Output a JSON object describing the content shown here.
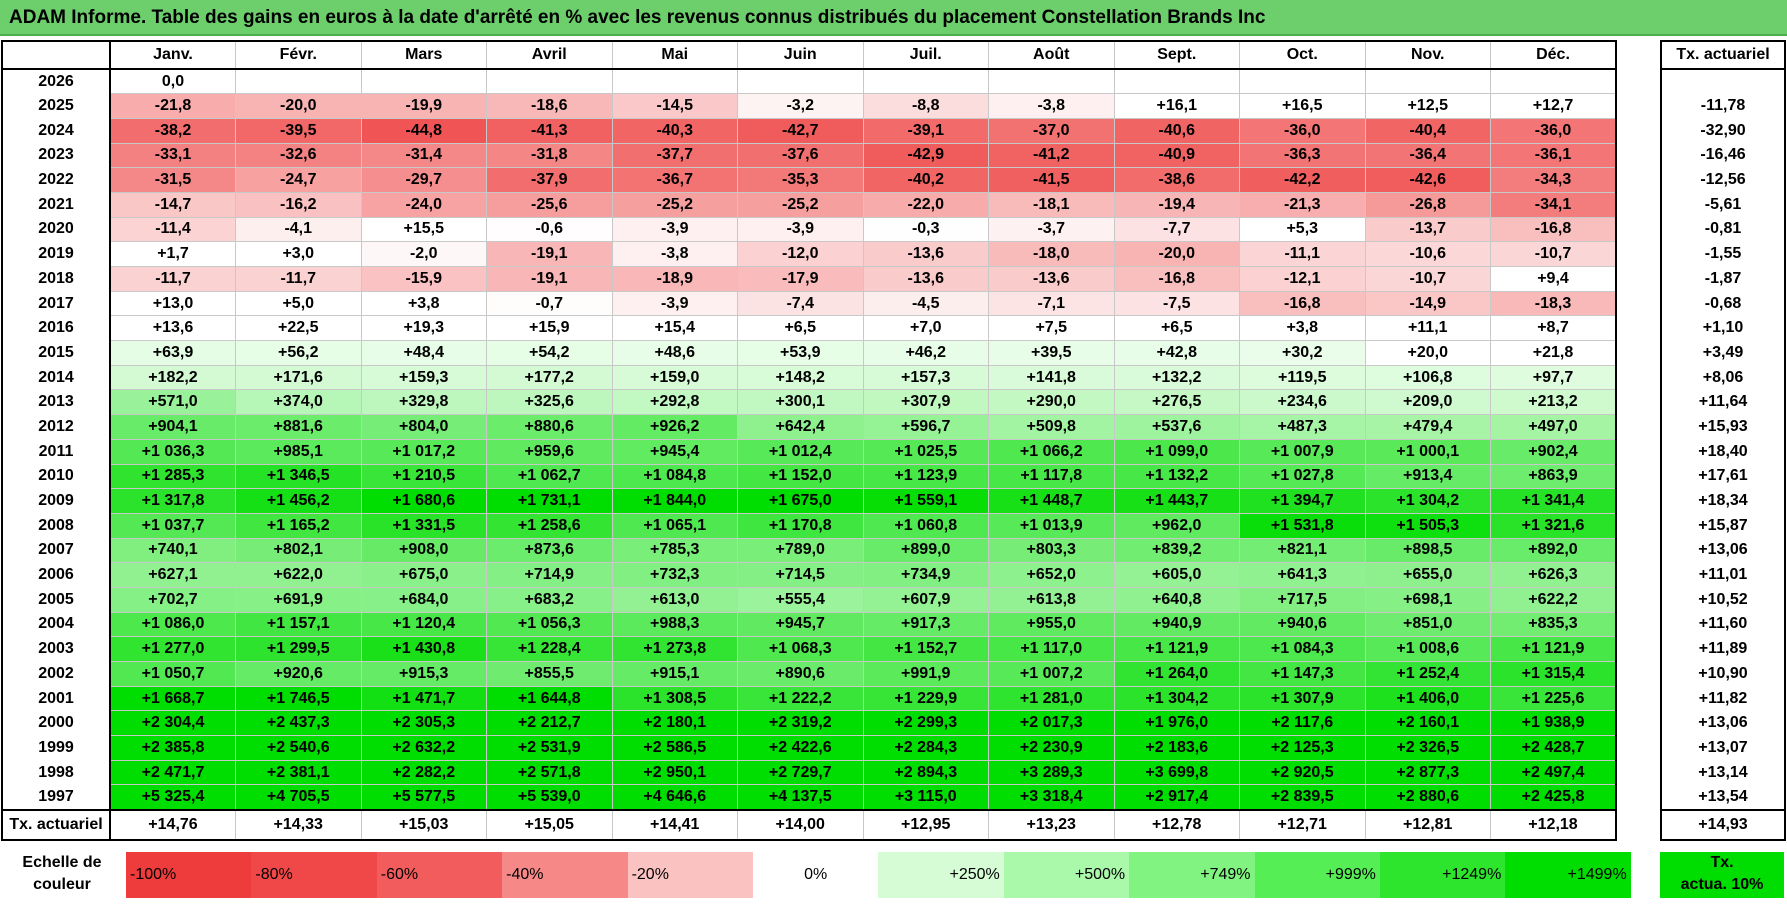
{
  "title": "ADAM Informe. Table des gains en euros à la date d'arrêté en % avec les revenus connus distribués du placement Constellation Brands Inc",
  "months": [
    "Janv.",
    "Févr.",
    "Mars",
    "Avril",
    "Mai",
    "Juin",
    "Juil.",
    "Août",
    "Sept.",
    "Oct.",
    "Nov.",
    "Déc."
  ],
  "side_header": "Tx. actuariel",
  "rows": [
    {
      "year": "2026",
      "values": [
        "0,0",
        "",
        "",
        "",
        "",
        "",
        "",
        "",
        "",
        "",
        "",
        ""
      ],
      "rate": ""
    },
    {
      "year": "2025",
      "values": [
        "-21,8",
        "-20,0",
        "-19,9",
        "-18,6",
        "-14,5",
        "-3,2",
        "-8,8",
        "-3,8",
        "+16,1",
        "+16,5",
        "+12,5",
        "+12,7"
      ],
      "rate": "-11,78"
    },
    {
      "year": "2024",
      "values": [
        "-38,2",
        "-39,5",
        "-44,8",
        "-41,3",
        "-40,3",
        "-42,7",
        "-39,1",
        "-37,0",
        "-40,6",
        "-36,0",
        "-40,4",
        "-36,0"
      ],
      "rate": "-32,90"
    },
    {
      "year": "2023",
      "values": [
        "-33,1",
        "-32,6",
        "-31,4",
        "-31,8",
        "-37,7",
        "-37,6",
        "-42,9",
        "-41,2",
        "-40,9",
        "-36,3",
        "-36,4",
        "-36,1"
      ],
      "rate": "-16,46"
    },
    {
      "year": "2022",
      "values": [
        "-31,5",
        "-24,7",
        "-29,7",
        "-37,9",
        "-36,7",
        "-35,3",
        "-40,2",
        "-41,5",
        "-38,6",
        "-42,2",
        "-42,6",
        "-34,3"
      ],
      "rate": "-12,56"
    },
    {
      "year": "2021",
      "values": [
        "-14,7",
        "-16,2",
        "-24,0",
        "-25,6",
        "-25,2",
        "-25,2",
        "-22,0",
        "-18,1",
        "-19,4",
        "-21,3",
        "-26,8",
        "-34,1"
      ],
      "rate": "-5,61"
    },
    {
      "year": "2020",
      "values": [
        "-11,4",
        "-4,1",
        "+15,5",
        "-0,6",
        "-3,9",
        "-3,9",
        "-0,3",
        "-3,7",
        "-7,7",
        "+5,3",
        "-13,7",
        "-16,8"
      ],
      "rate": "-0,81"
    },
    {
      "year": "2019",
      "values": [
        "+1,7",
        "+3,0",
        "-2,0",
        "-19,1",
        "-3,8",
        "-12,0",
        "-13,6",
        "-18,0",
        "-20,0",
        "-11,1",
        "-10,6",
        "-10,7"
      ],
      "rate": "-1,55"
    },
    {
      "year": "2018",
      "values": [
        "-11,7",
        "-11,7",
        "-15,9",
        "-19,1",
        "-18,9",
        "-17,9",
        "-13,6",
        "-13,6",
        "-16,8",
        "-12,1",
        "-10,7",
        "+9,4"
      ],
      "rate": "-1,87"
    },
    {
      "year": "2017",
      "values": [
        "+13,0",
        "+5,0",
        "+3,8",
        "-0,7",
        "-3,9",
        "-7,4",
        "-4,5",
        "-7,1",
        "-7,5",
        "-16,8",
        "-14,9",
        "-18,3"
      ],
      "rate": "-0,68"
    },
    {
      "year": "2016",
      "values": [
        "+13,6",
        "+22,5",
        "+19,3",
        "+15,9",
        "+15,4",
        "+6,5",
        "+7,0",
        "+7,5",
        "+6,5",
        "+3,8",
        "+11,1",
        "+8,7"
      ],
      "rate": "+1,10"
    },
    {
      "year": "2015",
      "values": [
        "+63,9",
        "+56,2",
        "+48,4",
        "+54,2",
        "+48,6",
        "+53,9",
        "+46,2",
        "+39,5",
        "+42,8",
        "+30,2",
        "+20,0",
        "+21,8"
      ],
      "rate": "+3,49"
    },
    {
      "year": "2014",
      "values": [
        "+182,2",
        "+171,6",
        "+159,3",
        "+177,2",
        "+159,0",
        "+148,2",
        "+157,3",
        "+141,8",
        "+132,2",
        "+119,5",
        "+106,8",
        "+97,7"
      ],
      "rate": "+8,06"
    },
    {
      "year": "2013",
      "values": [
        "+571,0",
        "+374,0",
        "+329,8",
        "+325,6",
        "+292,8",
        "+300,1",
        "+307,9",
        "+290,0",
        "+276,5",
        "+234,6",
        "+209,0",
        "+213,2"
      ],
      "rate": "+11,64"
    },
    {
      "year": "2012",
      "values": [
        "+904,1",
        "+881,6",
        "+804,0",
        "+880,6",
        "+926,2",
        "+642,4",
        "+596,7",
        "+509,8",
        "+537,6",
        "+487,3",
        "+479,4",
        "+497,0"
      ],
      "rate": "+15,93"
    },
    {
      "year": "2011",
      "values": [
        "+1 036,3",
        "+985,1",
        "+1 017,2",
        "+959,6",
        "+945,4",
        "+1 012,4",
        "+1 025,5",
        "+1 066,2",
        "+1 099,0",
        "+1 007,9",
        "+1 000,1",
        "+902,4"
      ],
      "rate": "+18,40"
    },
    {
      "year": "2010",
      "values": [
        "+1 285,3",
        "+1 346,5",
        "+1 210,5",
        "+1 062,7",
        "+1 084,8",
        "+1 152,0",
        "+1 123,9",
        "+1 117,8",
        "+1 132,2",
        "+1 027,8",
        "+913,4",
        "+863,9"
      ],
      "rate": "+17,61"
    },
    {
      "year": "2009",
      "values": [
        "+1 317,8",
        "+1 456,2",
        "+1 680,6",
        "+1 731,1",
        "+1 844,0",
        "+1 675,0",
        "+1 559,1",
        "+1 448,7",
        "+1 443,7",
        "+1 394,7",
        "+1 304,2",
        "+1 341,4"
      ],
      "rate": "+18,34"
    },
    {
      "year": "2008",
      "values": [
        "+1 037,7",
        "+1 165,2",
        "+1 331,5",
        "+1 258,6",
        "+1 065,1",
        "+1 170,8",
        "+1 060,8",
        "+1 013,9",
        "+962,0",
        "+1 531,8",
        "+1 505,3",
        "+1 321,6"
      ],
      "rate": "+15,87"
    },
    {
      "year": "2007",
      "values": [
        "+740,1",
        "+802,1",
        "+908,0",
        "+873,6",
        "+785,3",
        "+789,0",
        "+899,0",
        "+803,3",
        "+839,2",
        "+821,1",
        "+898,5",
        "+892,0"
      ],
      "rate": "+13,06"
    },
    {
      "year": "2006",
      "values": [
        "+627,1",
        "+622,0",
        "+675,0",
        "+714,9",
        "+732,3",
        "+714,5",
        "+734,9",
        "+652,0",
        "+605,0",
        "+641,3",
        "+655,0",
        "+626,3"
      ],
      "rate": "+11,01"
    },
    {
      "year": "2005",
      "values": [
        "+702,7",
        "+691,9",
        "+684,0",
        "+683,2",
        "+613,0",
        "+555,4",
        "+607,9",
        "+613,8",
        "+640,8",
        "+717,5",
        "+698,1",
        "+622,2"
      ],
      "rate": "+10,52"
    },
    {
      "year": "2004",
      "values": [
        "+1 086,0",
        "+1 157,1",
        "+1 120,4",
        "+1 056,3",
        "+988,3",
        "+945,7",
        "+917,3",
        "+955,0",
        "+940,9",
        "+940,6",
        "+851,0",
        "+835,3"
      ],
      "rate": "+11,60"
    },
    {
      "year": "2003",
      "values": [
        "+1 277,0",
        "+1 299,5",
        "+1 430,8",
        "+1 228,4",
        "+1 273,8",
        "+1 068,3",
        "+1 152,7",
        "+1 117,0",
        "+1 121,9",
        "+1 084,3",
        "+1 008,6",
        "+1 121,9"
      ],
      "rate": "+11,89"
    },
    {
      "year": "2002",
      "values": [
        "+1 050,7",
        "+920,6",
        "+915,3",
        "+855,5",
        "+915,1",
        "+890,6",
        "+991,9",
        "+1 007,2",
        "+1 264,0",
        "+1 147,3",
        "+1 252,4",
        "+1 315,4"
      ],
      "rate": "+10,90"
    },
    {
      "year": "2001",
      "values": [
        "+1 668,7",
        "+1 746,5",
        "+1 471,7",
        "+1 644,8",
        "+1 308,5",
        "+1 222,2",
        "+1 229,9",
        "+1 281,0",
        "+1 304,2",
        "+1 307,9",
        "+1 406,0",
        "+1 225,6"
      ],
      "rate": "+11,82"
    },
    {
      "year": "2000",
      "values": [
        "+2 304,4",
        "+2 437,3",
        "+2 305,3",
        "+2 212,7",
        "+2 180,1",
        "+2 319,2",
        "+2 299,3",
        "+2 017,3",
        "+1 976,0",
        "+2 117,6",
        "+2 160,1",
        "+1 938,9"
      ],
      "rate": "+13,06"
    },
    {
      "year": "1999",
      "values": [
        "+2 385,8",
        "+2 540,6",
        "+2 632,2",
        "+2 531,9",
        "+2 586,5",
        "+2 422,6",
        "+2 284,3",
        "+2 230,9",
        "+2 183,6",
        "+2 125,3",
        "+2 326,5",
        "+2 428,7"
      ],
      "rate": "+13,07"
    },
    {
      "year": "1998",
      "values": [
        "+2 471,7",
        "+2 381,1",
        "+2 282,2",
        "+2 571,8",
        "+2 950,1",
        "+2 729,7",
        "+2 894,3",
        "+3 289,3",
        "+3 699,8",
        "+2 920,5",
        "+2 877,3",
        "+2 497,4"
      ],
      "rate": "+13,14"
    },
    {
      "year": "1997",
      "values": [
        "+5 325,4",
        "+4 705,5",
        "+5 577,5",
        "+5 539,0",
        "+4 646,6",
        "+4 137,5",
        "+3 115,0",
        "+3 318,4",
        "+2 917,4",
        "+2 839,5",
        "+2 880,6",
        "+2 425,8"
      ],
      "rate": "+13,54"
    }
  ],
  "footer": {
    "label": "Tx. actuariel",
    "values": [
      "+14,76",
      "+14,33",
      "+15,03",
      "+15,05",
      "+14,41",
      "+14,00",
      "+12,95",
      "+13,23",
      "+12,78",
      "+12,71",
      "+12,81",
      "+12,18"
    ],
    "rate": "+14,93"
  },
  "legend": {
    "label_line1": "Echelle de",
    "label_line2": "couleur",
    "items": [
      {
        "text": "-100%",
        "color": "#ee3b3b",
        "align": "left"
      },
      {
        "text": "-80%",
        "color": "#f04848",
        "align": "left"
      },
      {
        "text": "-60%",
        "color": "#f25c5c",
        "align": "left"
      },
      {
        "text": "-40%",
        "color": "#f68888",
        "align": "left"
      },
      {
        "text": "-20%",
        "color": "#fbc2c2",
        "align": "left"
      },
      {
        "text": "0%",
        "color": "#ffffff",
        "align": "center"
      },
      {
        "text": "+250%",
        "color": "#d6fcd6",
        "align": "right"
      },
      {
        "text": "+500%",
        "color": "#aaf8aa",
        "align": "right"
      },
      {
        "text": "+749%",
        "color": "#80f380",
        "align": "right"
      },
      {
        "text": "+999%",
        "color": "#55ee55",
        "align": "right"
      },
      {
        "text": "+1249%",
        "color": "#2ee52e",
        "align": "right"
      },
      {
        "text": "+1499%",
        "color": "#00dd00",
        "align": "right"
      }
    ],
    "ta_line1": "Tx.",
    "ta_line2": "actua. 10%",
    "ta_color": "#00dd00"
  }
}
